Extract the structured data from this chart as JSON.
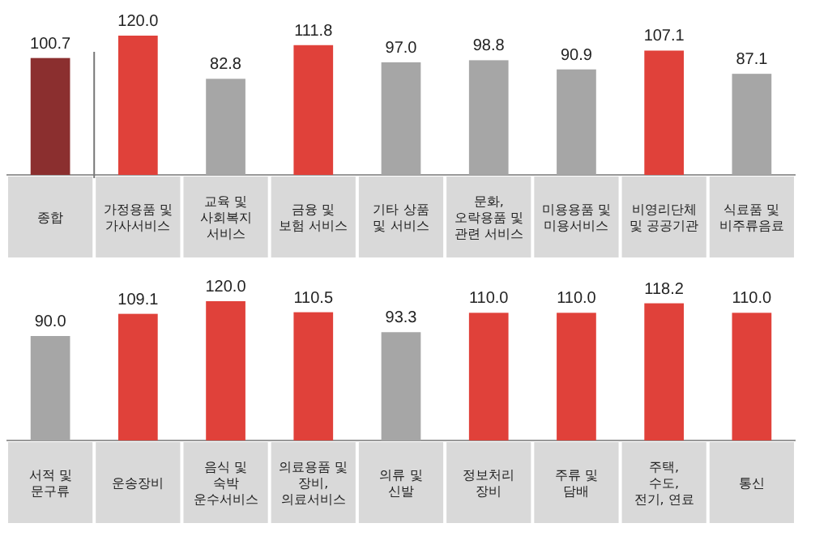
{
  "chart_data": [
    {
      "type": "bar",
      "categories": [
        "종합",
        "가정용품 및 가사서비스",
        "교육 및 사회복지 서비스",
        "금융 및 보험 서비스",
        "기타 상품 및 서비스",
        "문화, 오락용품 및 관련 서비스",
        "미용용품 및 미용서비스",
        "비영리단체 및 공공기관",
        "식료품 및 비주류음료"
      ],
      "values": [
        100.7,
        120.0,
        82.8,
        111.8,
        97.0,
        98.8,
        90.9,
        107.1,
        87.1
      ],
      "colors": [
        "#8b2f2f",
        "#e0413a",
        "#a6a6a6",
        "#e0413a",
        "#a6a6a6",
        "#a6a6a6",
        "#a6a6a6",
        "#e0413a",
        "#a6a6a6"
      ],
      "value_labels": [
        "100.7",
        "120.0",
        "82.8",
        "111.8",
        "97.0",
        "98.8",
        "90.9",
        "107.1",
        "87.1"
      ]
    },
    {
      "type": "bar",
      "categories": [
        "서적 및 문구류",
        "운송장비",
        "음식 및 숙박 운수서비스",
        "의료용품 및 장비, 의료서비스",
        "의류 및 신발",
        "정보처리 장비",
        "주류 및 담배",
        "주택, 수도, 전기, 연료",
        "통신"
      ],
      "values": [
        90.0,
        109.1,
        120.0,
        110.5,
        93.3,
        110.0,
        110.0,
        118.2,
        110.0
      ],
      "colors": [
        "#a6a6a6",
        "#e0413a",
        "#e0413a",
        "#e0413a",
        "#a6a6a6",
        "#e0413a",
        "#e0413a",
        "#e0413a",
        "#e0413a"
      ],
      "value_labels": [
        "90.0",
        "109.1",
        "120.0",
        "110.5",
        "93.3",
        "110.0",
        "110.0",
        "118.2",
        "110.0"
      ]
    }
  ]
}
